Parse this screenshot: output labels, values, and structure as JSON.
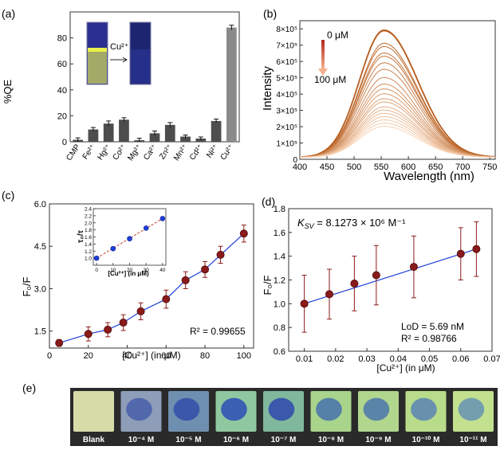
{
  "colors": {
    "bar_fill": "#4d4d4d",
    "bar_last": "#8a8a8a",
    "point_fill": "#8b1a1a",
    "fit_line": "#1f3fd8",
    "inset_point": "#1f3fd8",
    "inset_line": "#cc3b2b",
    "error_bar": "#8b1a1a",
    "spectrum_dark": "#b55a1a",
    "spectrum_light": "#f7d2b4",
    "arrow": "#d9603a",
    "strip_bg": "#2a2a2a",
    "uv_blue": "#2b3a8a",
    "yellow_green": "#c9d86a"
  },
  "panel_a": {
    "label": "(a)",
    "ylabel": "%QE",
    "ion_label": "Cu²⁺",
    "chart_data": {
      "type": "bar",
      "categories": [
        "CMP",
        "Fe²⁺",
        "Hg²⁺",
        "Co²⁺",
        "Mg²⁺",
        "Ca²⁺",
        "Zn²⁺",
        "Mn²⁺",
        "Cd²⁺",
        "Ni²⁺",
        "Cu²⁺"
      ],
      "values": [
        1.5,
        9.5,
        14,
        17,
        1.2,
        6.5,
        13,
        4,
        2.5,
        16,
        88
      ],
      "errors": [
        1.5,
        1.5,
        2,
        1.5,
        1.5,
        1.8,
        1.8,
        1.2,
        1.2,
        1.5,
        1.8
      ],
      "yticks": [
        0,
        20,
        40,
        60,
        80
      ],
      "ylim": [
        0,
        100
      ]
    }
  },
  "panel_b": {
    "label": "(b)",
    "ylabel": "Intensity",
    "xlabel": "Wavelength (nm)",
    "legend_top": "0 μM",
    "legend_bottom": "100 μM",
    "chart_data": {
      "type": "line",
      "xlim": [
        400,
        760
      ],
      "ylim": [
        0,
        850000
      ],
      "xticks": [
        "400",
        "450",
        "500",
        "550",
        "600",
        "650",
        "700",
        "750"
      ],
      "yticks": [
        {
          "value": 0,
          "label": "0"
        },
        {
          "value": 100000,
          "label": "1×10⁵"
        },
        {
          "value": 200000,
          "label": "2×10⁵"
        },
        {
          "value": 300000,
          "label": "3×10⁵"
        },
        {
          "value": 400000,
          "label": "4×10⁵"
        },
        {
          "value": 500000,
          "label": "5×10⁵"
        },
        {
          "value": 600000,
          "label": "6×10⁵"
        },
        {
          "value": 700000,
          "label": "7×10⁵"
        },
        {
          "value": 800000,
          "label": "8×10⁵"
        }
      ],
      "peak_wavelength": 555,
      "peaks": [
        780000,
        775000,
        700000,
        680000,
        640000,
        620000,
        580000,
        540000,
        490000,
        450000,
        420000,
        390000,
        360000,
        340000,
        310000,
        290000,
        270000,
        250000,
        230000,
        210000,
        190000
      ]
    }
  },
  "panel_c": {
    "label": "(c)",
    "ylabel": "F₀/F",
    "xlabel": "[Cu²⁺] (in μM)",
    "r2": "R² = 0.99655",
    "chart_data": {
      "type": "scatter",
      "x": [
        5,
        20,
        30,
        38,
        47,
        60,
        70,
        80,
        88,
        100
      ],
      "y": [
        1.08,
        1.4,
        1.55,
        1.8,
        2.2,
        2.63,
        3.3,
        3.68,
        4.2,
        4.95
      ],
      "errors": [
        0.12,
        0.25,
        0.25,
        0.28,
        0.3,
        0.32,
        0.3,
        0.28,
        0.3,
        0.3
      ],
      "xlim": [
        0,
        105
      ],
      "ylim": [
        0.9,
        6.0
      ],
      "xticks": [
        0,
        20,
        40,
        60,
        80,
        100
      ],
      "yticks": [
        {
          "value": 1.5,
          "label": "1.5"
        },
        {
          "value": 3.0,
          "label": "3.0"
        },
        {
          "value": 4.5,
          "label": "4.5"
        },
        {
          "value": 6.0,
          "label": "6.0"
        }
      ],
      "inset": {
        "ylabel": "τ₀/τ",
        "xlabel": "[Cu²⁺] (in μM)",
        "x": [
          0,
          10,
          20,
          30,
          40
        ],
        "y": [
          1.0,
          1.27,
          1.55,
          1.85,
          2.12
        ],
        "xlim": [
          -2,
          42
        ],
        "ylim": [
          0.8,
          2.4
        ],
        "xticks": [
          0,
          10,
          20,
          30,
          40
        ],
        "yticks": [
          {
            "value": 1.0,
            "label": "1.0"
          },
          {
            "value": 1.2,
            "label": "1.2"
          },
          {
            "value": 1.4,
            "label": "1.4"
          },
          {
            "value": 1.6,
            "label": "1.6"
          },
          {
            "value": 1.8,
            "label": "1.8"
          },
          {
            "value": 2.0,
            "label": "2.0"
          },
          {
            "value": 2.2,
            "label": "2.2"
          },
          {
            "value": 2.4,
            "label": "2.4"
          }
        ]
      }
    }
  },
  "panel_d": {
    "label": "(d)",
    "ylabel": "F₀/F",
    "xlabel": "[Cu²⁺] (in μM)",
    "ksv_label": "K",
    "ksv_sub": "SV",
    "ksv_value": " = 8.1273 × 10⁶ M⁻¹",
    "lod": "LoD = 5.69 nM",
    "r2": "R² = 0.98766",
    "chart_data": {
      "type": "scatter",
      "x": [
        0.01,
        0.018,
        0.026,
        0.033,
        0.045,
        0.06,
        0.065
      ],
      "y": [
        1.0,
        1.08,
        1.17,
        1.24,
        1.31,
        1.42,
        1.46
      ],
      "errors": [
        0.24,
        0.21,
        0.23,
        0.25,
        0.26,
        0.22,
        0.23
      ],
      "xlim": [
        0.005,
        0.07
      ],
      "ylim": [
        0.6,
        1.8
      ],
      "xticks": [
        {
          "value": 0.01,
          "label": "0.01"
        },
        {
          "value": 0.02,
          "label": "0.02"
        },
        {
          "value": 0.03,
          "label": "0.03"
        },
        {
          "value": 0.04,
          "label": "0.04"
        },
        {
          "value": 0.05,
          "label": "0.05"
        },
        {
          "value": 0.06,
          "label": "0.06"
        },
        {
          "value": 0.07,
          "label": "0.07"
        }
      ],
      "yticks": [
        {
          "value": 0.6,
          "label": "0.6"
        },
        {
          "value": 0.8,
          "label": "0.8"
        },
        {
          "value": 1.0,
          "label": "1.0"
        },
        {
          "value": 1.2,
          "label": "1.2"
        },
        {
          "value": 1.4,
          "label": "1.4"
        },
        {
          "value": 1.6,
          "label": "1.6"
        },
        {
          "value": 1.8,
          "label": "1.8"
        }
      ]
    }
  },
  "panel_e": {
    "label": "(e)",
    "samples": [
      {
        "label": "Blank",
        "base": "#d6dca8",
        "blob": "#d6dca8"
      },
      {
        "label": "10⁻⁴ M",
        "base": "#8e9db8",
        "blob": "#3e57a8"
      },
      {
        "label": "10⁻⁵ M",
        "base": "#6f8fb0",
        "blob": "#2a44a8"
      },
      {
        "label": "10⁻⁶ M",
        "base": "#8fc8a0",
        "blob": "#1f3cb8"
      },
      {
        "label": "10⁻⁷ M",
        "base": "#7fb89c",
        "blob": "#2438b0"
      },
      {
        "label": "10⁻⁸ M",
        "base": "#a9d48c",
        "blob": "#3a64b0"
      },
      {
        "label": "10⁻⁹ M",
        "base": "#b1d68e",
        "blob": "#3f6ab0"
      },
      {
        "label": "10⁻¹⁰ M",
        "base": "#b9dc8a",
        "blob": "#4d78b8"
      },
      {
        "label": "10⁻¹¹ M",
        "base": "#c3e08e",
        "blob": "#5a88b8"
      }
    ]
  }
}
